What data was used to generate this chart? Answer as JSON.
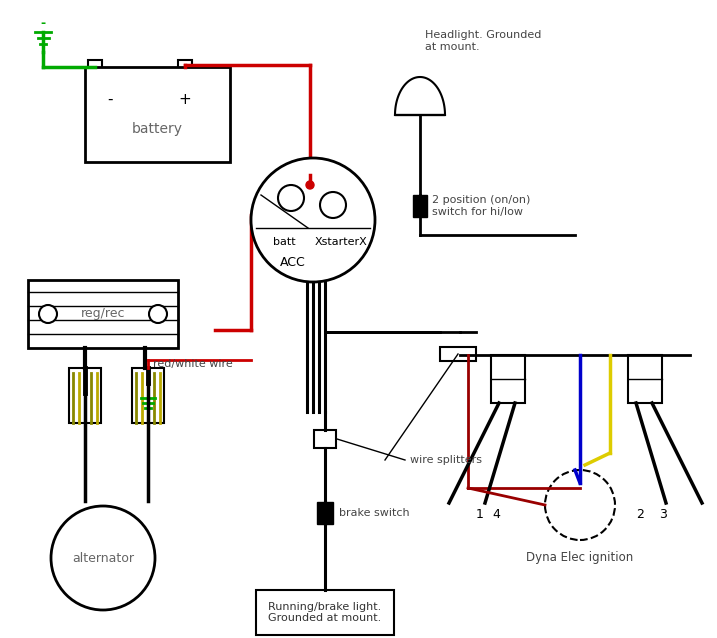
{
  "labels": {
    "battery": "battery",
    "alternator": "alternator",
    "reg_rec": "reg/rec",
    "headlight": "Headlight. Grounded\nat mount.",
    "hi_low_switch": "2 position (on/on)\nswitch for hi/low",
    "batt": "batt",
    "starter": "XstarterX",
    "acc": "ACC",
    "wire_splitters": "wire splitters",
    "brake_switch": "brake switch",
    "running_light": "Running/brake light.\nGrounded at mount.",
    "dyna_ignition": "Dyna Elec ignition",
    "red_white_wire": "red/white wire",
    "minus": "–",
    "plus": "+"
  },
  "colors": {
    "red": "#cc0000",
    "black": "#000000",
    "green": "#00aa00",
    "blue": "#0000cc",
    "yellow": "#ddcc00",
    "dark_red": "#990000",
    "gray_text": "#555555",
    "wire_gold1": "#888800",
    "wire_gold2": "#bbaa00",
    "wire_gold3": "#999900"
  }
}
